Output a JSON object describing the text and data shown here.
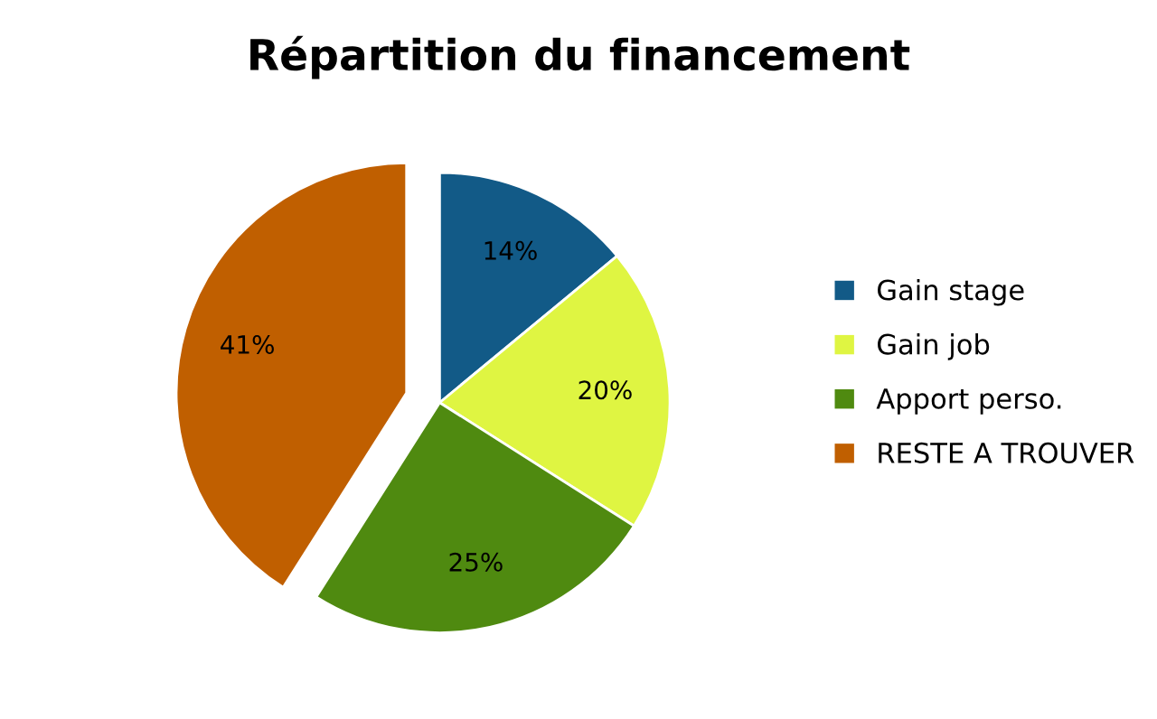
{
  "chart_data": {
    "type": "pie",
    "title": "Répartition du financement",
    "categories": [
      "Gain stage",
      "Gain job",
      "Apport perso.",
      "RESTE A TROUVER"
    ],
    "values": [
      14,
      20,
      25,
      41
    ],
    "value_labels": [
      "14%",
      "20%",
      "25%",
      "41%"
    ],
    "colors": [
      "#125a87",
      "#dff542",
      "#4f8a10",
      "#c05f00"
    ],
    "legend": "right"
  }
}
